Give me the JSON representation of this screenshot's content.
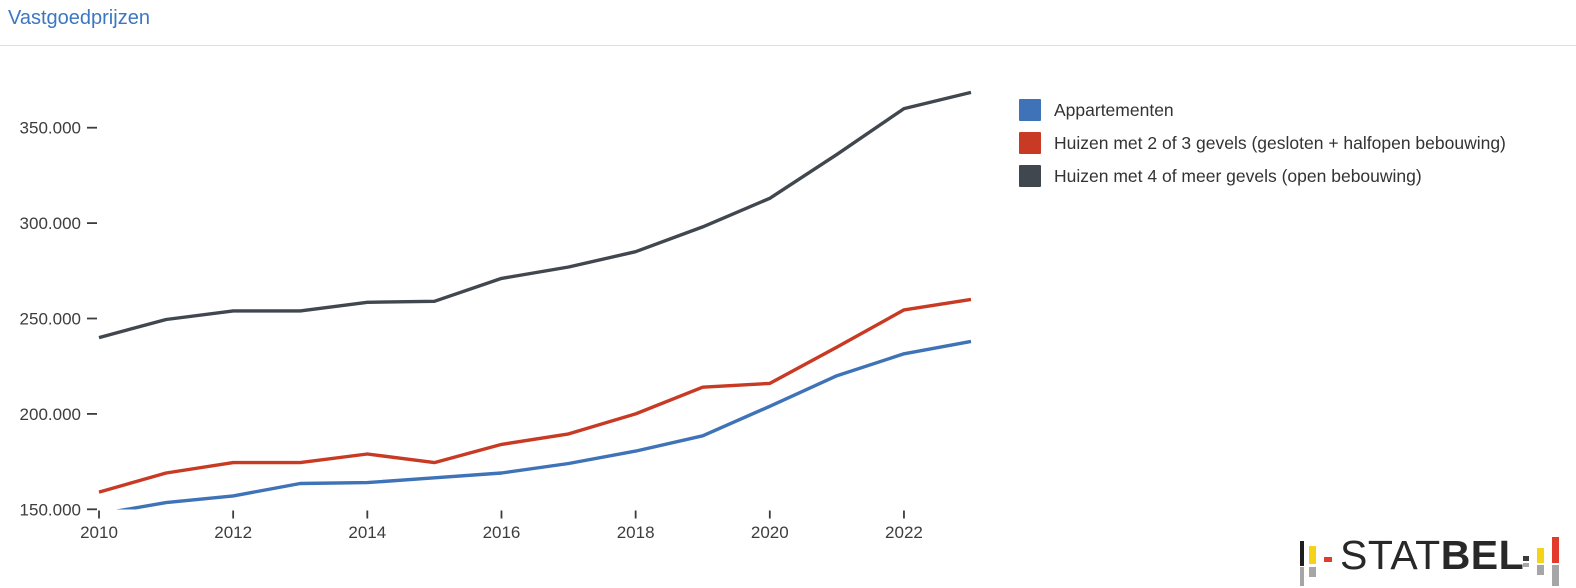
{
  "header": {
    "title": "Vastgoedprijzen"
  },
  "chart_data": {
    "type": "line",
    "title": "Vastgoedprijzen",
    "x": [
      2010,
      2011,
      2012,
      2013,
      2014,
      2015,
      2016,
      2017,
      2018,
      2019,
      2020,
      2021,
      2022,
      2023
    ],
    "series": [
      {
        "name": "Appartementen",
        "color": "#3e73b8",
        "values": [
          147500,
          153500,
          157000,
          163500,
          164000,
          166500,
          169000,
          174000,
          180500,
          188500,
          204000,
          220000,
          231500,
          238000
        ]
      },
      {
        "name": "Huizen met 2 of 3 gevels (gesloten + halfopen bebouwing)",
        "color": "#c83a23",
        "values": [
          159000,
          169000,
          174500,
          174500,
          179000,
          174500,
          184000,
          189500,
          200000,
          214000,
          216000,
          235000,
          254500,
          260000
        ]
      },
      {
        "name": "Huizen met 4 of meer gevels (open bebouwing)",
        "color": "#41474f",
        "values": [
          240000,
          249500,
          254000,
          254000,
          258500,
          259000,
          271000,
          277000,
          285000,
          298000,
          313000,
          336000,
          360000,
          368500
        ]
      }
    ],
    "xlabel": "",
    "ylabel": "",
    "ylim": [
      150000,
      375000
    ],
    "xticks": [
      {
        "value": 2010,
        "label": "2010"
      },
      {
        "value": 2012,
        "label": "2012"
      },
      {
        "value": 2014,
        "label": "2014"
      },
      {
        "value": 2016,
        "label": "2016"
      },
      {
        "value": 2018,
        "label": "2018"
      },
      {
        "value": 2020,
        "label": "2020"
      },
      {
        "value": 2022,
        "label": "2022"
      }
    ],
    "yticks": [
      {
        "value": 150000,
        "label": "150.000"
      },
      {
        "value": 200000,
        "label": "200.000"
      },
      {
        "value": 250000,
        "label": "250.000"
      },
      {
        "value": 300000,
        "label": "300.000"
      },
      {
        "value": 350000,
        "label": "350.000"
      }
    ],
    "grid": false,
    "legend_position": "right"
  },
  "logo": {
    "text_regular": "STAT",
    "text_bold": "BEL"
  },
  "logo_colors": {
    "black": "#1e1e1e",
    "yellow": "#f5d319",
    "red": "#e23b2e",
    "gray": "#a6a6a6"
  }
}
